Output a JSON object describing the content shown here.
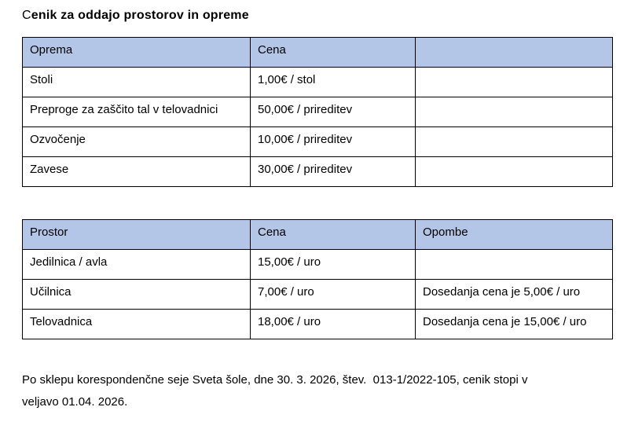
{
  "title": {
    "first_letter": "C",
    "rest": "enik za oddajo prostorov in opreme"
  },
  "equipment_table": {
    "headers": [
      "Oprema",
      "Cena",
      ""
    ],
    "rows": [
      [
        "Stoli",
        "1,00€ / stol",
        ""
      ],
      [
        "Preproge za zaščito tal v telovadnici",
        "50,00€ / prireditev",
        ""
      ],
      [
        "Ozvočenje",
        "10,00€ / prireditev",
        ""
      ],
      [
        "Zavese",
        "30,00€ / prireditev",
        ""
      ]
    ]
  },
  "rooms_table": {
    "headers": [
      "Prostor",
      "Cena",
      "Opombe"
    ],
    "rows": [
      [
        "Jedilnica / avla",
        "15,00€ / uro",
        ""
      ],
      [
        "Učilnica",
        "7,00€ / uro",
        "Dosedanja cena je 5,00€ / uro"
      ],
      [
        "Telovadnica",
        "18,00€ / uro",
        "Dosedanja cena je 15,00€ / uro"
      ]
    ]
  },
  "footer": {
    "line1": "Po sklepu korespondenčne seje Sveta šole, dne 30. 3. 2026, štev.  013-1/2022-105, cenik stopi v",
    "line2": "veljavo 01.04. 2026."
  },
  "colors": {
    "header_fill": "#b4c6e7",
    "border": "#000000",
    "text": "#000000",
    "background": "#ffffff"
  }
}
